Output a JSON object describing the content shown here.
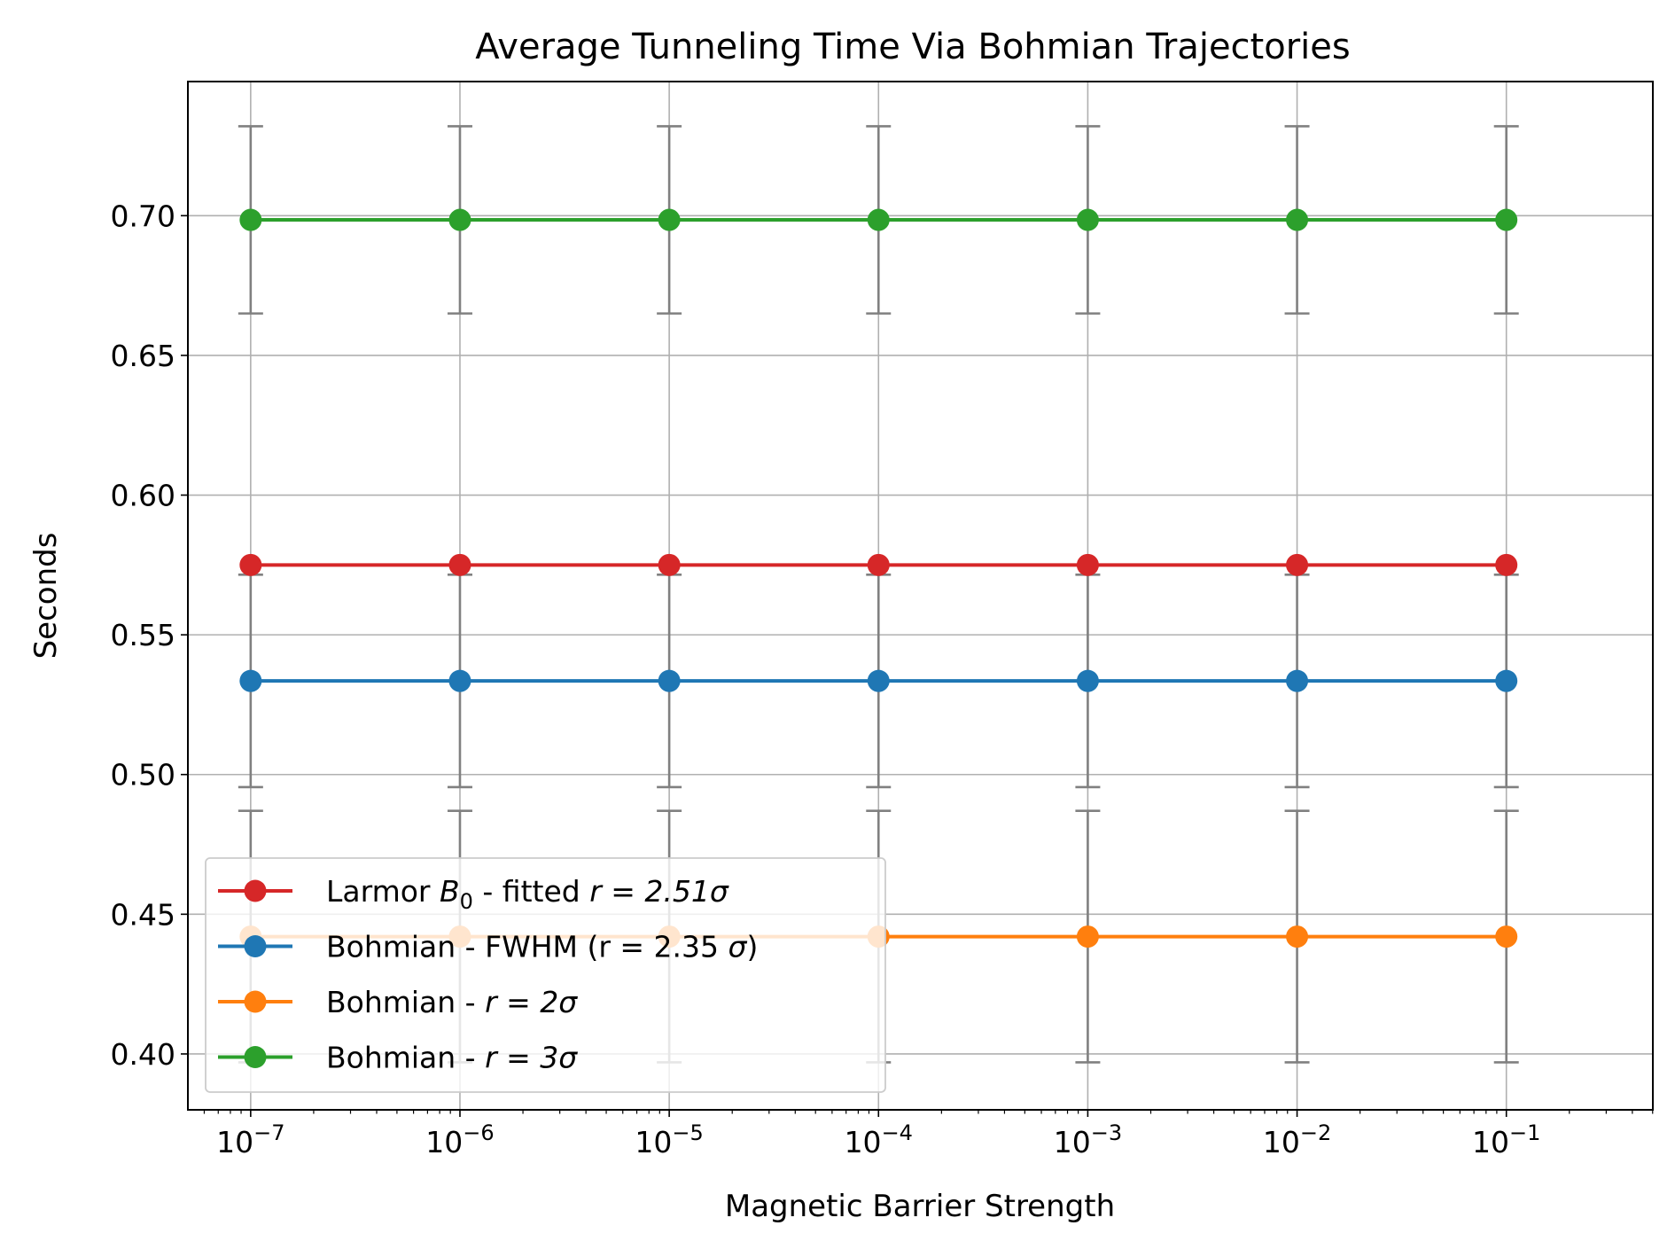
{
  "chart_data": {
    "type": "line",
    "title": "Average Tunneling Time Via Bohmian Trajectories",
    "xlabel": "Magnetic Barrier Strength",
    "ylabel": "Seconds",
    "x_scale": "log",
    "x": [
      1e-07,
      1e-06,
      1e-05,
      0.0001,
      0.001,
      0.01,
      0.1
    ],
    "x_tick_labels": [
      {
        "base": "10",
        "exp": "−7"
      },
      {
        "base": "10",
        "exp": "−6"
      },
      {
        "base": "10",
        "exp": "−5"
      },
      {
        "base": "10",
        "exp": "−4"
      },
      {
        "base": "10",
        "exp": "−3"
      },
      {
        "base": "10",
        "exp": "−2"
      },
      {
        "base": "10",
        "exp": "−1"
      }
    ],
    "xlim_exp": [
      -7.3,
      -0.3
    ],
    "ylim": [
      0.38,
      0.748
    ],
    "y_ticks": [
      "0.40",
      "0.45",
      "0.50",
      "0.55",
      "0.60",
      "0.65",
      "0.70"
    ],
    "y_tick_values": [
      0.4,
      0.45,
      0.5,
      0.55,
      0.6,
      0.65,
      0.7
    ],
    "grid": true,
    "legend_position": "lower-left",
    "errorbar_color": "#808080",
    "series": [
      {
        "key": "larmor",
        "legend_plain": "Larmor ",
        "legend_math": "B",
        "legend_sub": "0",
        "legend_rest": " - fitted ",
        "legend_tail": "r = 2.51σ",
        "color": "#d62728",
        "values": [
          0.575,
          0.575,
          0.575,
          0.575,
          0.575,
          0.575,
          0.575
        ],
        "error": [
          0.0,
          0.0,
          0.0,
          0.0,
          0.0,
          0.0,
          0.0
        ]
      },
      {
        "key": "fwhm",
        "legend_plain": "Bohmian - FWHM (r = 2.35 ",
        "legend_math": "σ",
        "legend_rest": ")",
        "color": "#1f77b4",
        "values": [
          0.5335,
          0.5335,
          0.5335,
          0.5335,
          0.5335,
          0.5335,
          0.5335
        ],
        "error": [
          0.038,
          0.038,
          0.038,
          0.038,
          0.038,
          0.038,
          0.038
        ]
      },
      {
        "key": "r2",
        "legend_plain": "Bohmian - ",
        "legend_math": "r = 2σ",
        "color": "#ff7f0e",
        "values": [
          0.442,
          0.442,
          0.442,
          0.442,
          0.442,
          0.442,
          0.442
        ],
        "error": [
          0.045,
          0.045,
          0.045,
          0.045,
          0.045,
          0.045,
          0.045
        ]
      },
      {
        "key": "r3",
        "legend_plain": "Bohmian - ",
        "legend_math": "r = 3σ",
        "color": "#2ca02c",
        "values": [
          0.6985,
          0.6985,
          0.6985,
          0.6985,
          0.6985,
          0.6985,
          0.6985
        ],
        "error": [
          0.0335,
          0.0335,
          0.0335,
          0.0335,
          0.0335,
          0.0335,
          0.0335
        ]
      }
    ]
  }
}
